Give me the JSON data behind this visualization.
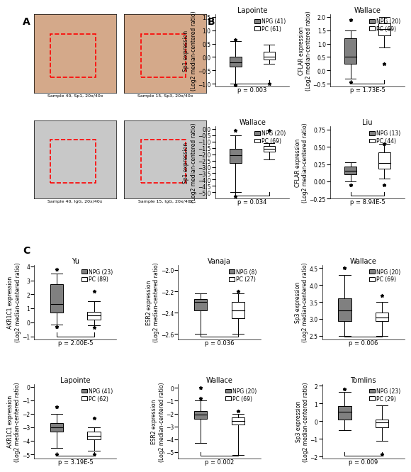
{
  "panel_B": {
    "plots": [
      {
        "title": "Lapointe",
        "legend": [
          "NPG (41)",
          "PC (61)"
        ],
        "ylabel": "Sp1 expression\n(Log2 median-centered ratio)",
        "ylim": [
          -1.1,
          1.6
        ],
        "yticks": [
          -1.0,
          -0.5,
          0.0,
          0.5,
          1.0,
          1.5
        ],
        "pval": "p = 0.003",
        "boxes": [
          {
            "q1": -0.35,
            "median": -0.2,
            "q3": 0.0,
            "whislo": -1.0,
            "whishi": 0.6,
            "fliers_low": [
              -1.05
            ],
            "fliers_high": [
              0.65
            ]
          },
          {
            "q1": -0.1,
            "median": 0.0,
            "q3": 0.2,
            "whislo": -0.25,
            "whishi": 0.45,
            "fliers_low": [
              -1.0
            ],
            "fliers_high": []
          }
        ]
      },
      {
        "title": "Wallace",
        "legend": [
          "NPG (20)",
          "PC (69)"
        ],
        "ylabel": "CFLAR expression\n(Log2 median-centered ratio)",
        "ylim": [
          -0.6,
          2.1
        ],
        "yticks": [
          -0.5,
          0.0,
          0.5,
          1.0,
          1.5,
          2.0
        ],
        "pval": "p = 1.73E-5",
        "boxes": [
          {
            "q1": 0.25,
            "median": 0.5,
            "q3": 1.2,
            "whislo": -0.3,
            "whishi": 1.5,
            "fliers_low": [
              -0.45
            ],
            "fliers_high": [
              1.9
            ]
          },
          {
            "q1": 1.3,
            "median": 1.55,
            "q3": 1.75,
            "whislo": 0.85,
            "whishi": 2.0,
            "fliers_low": [],
            "fliers_high": [
              0.25
            ]
          }
        ]
      },
      {
        "title": "Wallace",
        "legend": [
          "NPG (20)",
          "PC (69)"
        ],
        "ylabel": "Sp1 expression\n(Log2 median-centered ratio)",
        "ylim": [
          -5.5,
          0.2
        ],
        "yticks": [
          -5.0,
          -4.5,
          -4.0,
          -3.5,
          -3.0,
          -2.5,
          -2.0,
          -1.5,
          -1.0,
          -0.5,
          0.0
        ],
        "pval": "p = 0.034",
        "boxes": [
          {
            "q1": -2.7,
            "median": -2.1,
            "q3": -1.6,
            "whislo": -5.0,
            "whishi": -0.5,
            "fliers_low": [
              -5.3
            ],
            "fliers_high": [
              -0.1
            ]
          },
          {
            "q1": -1.8,
            "median": -1.55,
            "q3": -1.35,
            "whislo": -2.4,
            "whishi": -1.1,
            "fliers_low": [],
            "fliers_high": [
              -0.1
            ]
          }
        ]
      },
      {
        "title": "Liu",
        "legend": [
          "NPG (13)",
          "PC (44)"
        ],
        "ylabel": "CFLAR expression\n(Log2 median-centered ratio)",
        "ylim": [
          -0.25,
          0.8
        ],
        "yticks": [
          -0.25,
          0.0,
          0.25,
          0.5,
          0.75
        ],
        "pval": "p = 8.94E-5",
        "boxes": [
          {
            "q1": 0.1,
            "median": 0.15,
            "q3": 0.22,
            "whislo": 0.0,
            "whishi": 0.28,
            "fliers_low": [
              -0.05
            ],
            "fliers_high": []
          },
          {
            "q1": 0.18,
            "median": 0.27,
            "q3": 0.42,
            "whislo": 0.04,
            "whishi": 0.55,
            "fliers_low": [
              -0.05
            ],
            "fliers_high": [
              0.55
            ]
          }
        ]
      }
    ]
  },
  "panel_C": {
    "plots": [
      {
        "title": "Yu",
        "legend": [
          "NPG (23)",
          "PC (89)"
        ],
        "ylabel": "AKR1C1 expression\n(Log2 median-centered ratio)",
        "ylim": [
          -1.2,
          4.1
        ],
        "yticks": [
          -1,
          0,
          1,
          2,
          3,
          4
        ],
        "pval": "p = 2.00E-5",
        "boxes": [
          {
            "q1": 0.7,
            "median": 1.3,
            "q3": 2.7,
            "whislo": -0.15,
            "whishi": 3.5,
            "fliers_low": [
              -0.3
            ],
            "fliers_high": [
              3.8
            ]
          },
          {
            "q1": 0.2,
            "median": 0.5,
            "q3": 0.75,
            "whislo": -0.2,
            "whishi": 1.5,
            "fliers_low": [
              -0.35
            ],
            "fliers_high": [
              2.2
            ]
          }
        ]
      },
      {
        "title": "Vanaja",
        "legend": [
          "NPG (8)",
          "PC (27)"
        ],
        "ylabel": "ESR2 expression\n(Log2 median-centered ratio)",
        "ylim": [
          -2.65,
          -1.95
        ],
        "yticks": [
          -2.6,
          -2.4,
          -2.2,
          -2.0
        ],
        "pval": "p = 0.036",
        "boxes": [
          {
            "q1": -2.38,
            "median": -2.3,
            "q3": -2.27,
            "whislo": -2.6,
            "whishi": -2.22,
            "fliers_low": [],
            "fliers_high": []
          },
          {
            "q1": -2.45,
            "median": -2.38,
            "q3": -2.3,
            "whislo": -2.6,
            "whishi": -2.22,
            "fliers_low": [],
            "fliers_high": [
              -2.2
            ]
          }
        ]
      },
      {
        "title": "Wallace",
        "legend": [
          "NPG (20)",
          "PC (69)"
        ],
        "ylabel": "Sp3 expression\n(Log2 median-centered ratio)",
        "ylim": [
          2.4,
          4.6
        ],
        "yticks": [
          2.5,
          3.0,
          3.5,
          4.0,
          4.5
        ],
        "pval": "p = 0.006",
        "boxes": [
          {
            "q1": 2.95,
            "median": 3.25,
            "q3": 3.6,
            "whislo": 2.5,
            "whishi": 4.3,
            "fliers_low": [],
            "fliers_high": [
              4.5
            ]
          },
          {
            "q1": 2.95,
            "median": 3.05,
            "q3": 3.2,
            "whislo": 2.5,
            "whishi": 3.5,
            "fliers_low": [],
            "fliers_high": [
              3.7
            ]
          }
        ]
      },
      {
        "title": "Lapointe",
        "legend": [
          "NPG (41)",
          "PC (62)"
        ],
        "ylabel": "AKR1C1 expression\n(Log2 median-centered ratio)",
        "ylim": [
          -5.3,
          0.2
        ],
        "yticks": [
          -5,
          -4,
          -3,
          -2,
          -1,
          0
        ],
        "pval": "p = 3.19E-5",
        "boxes": [
          {
            "q1": -3.3,
            "median": -3.0,
            "q3": -2.7,
            "whislo": -4.5,
            "whishi": -2.0,
            "fliers_low": [
              -5.0
            ],
            "fliers_high": [
              -1.5
            ]
          },
          {
            "q1": -3.9,
            "median": -3.6,
            "q3": -3.3,
            "whislo": -4.7,
            "whishi": -3.0,
            "fliers_low": [
              -5.0
            ],
            "fliers_high": [
              -2.3
            ]
          }
        ]
      },
      {
        "title": "Wallace",
        "legend": [
          "NPG (20)",
          "PC (69)"
        ],
        "ylabel": "ESR2 expression\n(Log2 median-centered ratio)",
        "ylim": [
          -5.5,
          0.3
        ],
        "yticks": [
          -5,
          -4,
          -3,
          -2,
          -1,
          0
        ],
        "pval": "p = 0.002",
        "boxes": [
          {
            "q1": -2.4,
            "median": -2.1,
            "q3": -1.8,
            "whislo": -4.3,
            "whishi": -1.0,
            "fliers_low": [
              -0.8
            ],
            "fliers_high": [
              0.0
            ]
          },
          {
            "q1": -2.85,
            "median": -2.6,
            "q3": -2.3,
            "whislo": -5.2,
            "whishi": -2.0,
            "fliers_low": [],
            "fliers_high": [
              -1.8
            ]
          }
        ]
      },
      {
        "title": "Tomlins",
        "legend": [
          "NPG (23)",
          "PC (29)"
        ],
        "ylabel": "Sp3 expression\n(Log2 median-centered ratio)",
        "ylim": [
          -2.1,
          2.1
        ],
        "yticks": [
          -2.0,
          -1.0,
          0.0,
          1.0,
          2.0
        ],
        "pval": "p = 0.009",
        "boxes": [
          {
            "q1": 0.1,
            "median": 0.55,
            "q3": 0.85,
            "whislo": -0.5,
            "whishi": 1.65,
            "fliers_low": [],
            "fliers_high": [
              1.8
            ]
          },
          {
            "q1": -0.35,
            "median": -0.05,
            "q3": 0.1,
            "whislo": -1.1,
            "whishi": 0.9,
            "fliers_low": [
              -1.85
            ],
            "fliers_high": []
          }
        ]
      }
    ]
  },
  "npg_color": "#808080",
  "pc_color": "#ffffff",
  "box_edgecolor": "#000000",
  "median_color": "#000000",
  "whisker_color": "#000000",
  "flier_marker": "*",
  "flier_size": 5,
  "title_fontsize": 7,
  "label_fontsize": 5.5,
  "tick_fontsize": 5.5,
  "legend_fontsize": 5.5,
  "pval_fontsize": 6,
  "bracket_color": "#000000"
}
